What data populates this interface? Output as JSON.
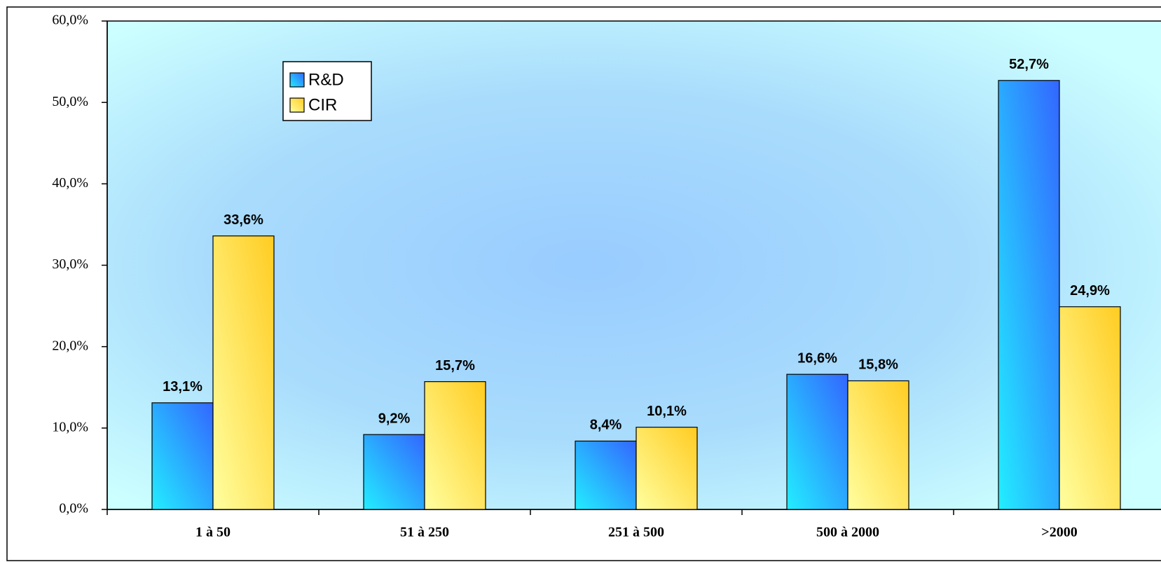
{
  "chart_data": {
    "type": "bar",
    "categories": [
      "1 à 50",
      "51 à 250",
      "251 à 500",
      "500 à 2000",
      ">2000"
    ],
    "series": [
      {
        "name": "R&D",
        "color": "#3366ff",
        "values": [
          13.1,
          9.2,
          8.4,
          16.6,
          52.7
        ],
        "value_labels": [
          "13,1%",
          "9,2%",
          "8,4%",
          "16,6%",
          "52,7%"
        ]
      },
      {
        "name": "CIR",
        "color": "#ffcc22",
        "values": [
          33.6,
          15.7,
          10.1,
          15.8,
          24.9
        ],
        "value_labels": [
          "33,6%",
          "15,7%",
          "10,1%",
          "15,8%",
          "24,9%"
        ]
      }
    ],
    "ylim": [
      0,
      60
    ],
    "yticks": [
      {
        "value": 0,
        "label": "0,0%"
      },
      {
        "value": 10,
        "label": "10,0%"
      },
      {
        "value": 20,
        "label": "20,0%"
      },
      {
        "value": 30,
        "label": "30,0%"
      },
      {
        "value": 40,
        "label": "40,0%"
      },
      {
        "value": 50,
        "label": "50,0%"
      },
      {
        "value": 60,
        "label": "60,0%"
      }
    ],
    "legend": "upper-left"
  }
}
